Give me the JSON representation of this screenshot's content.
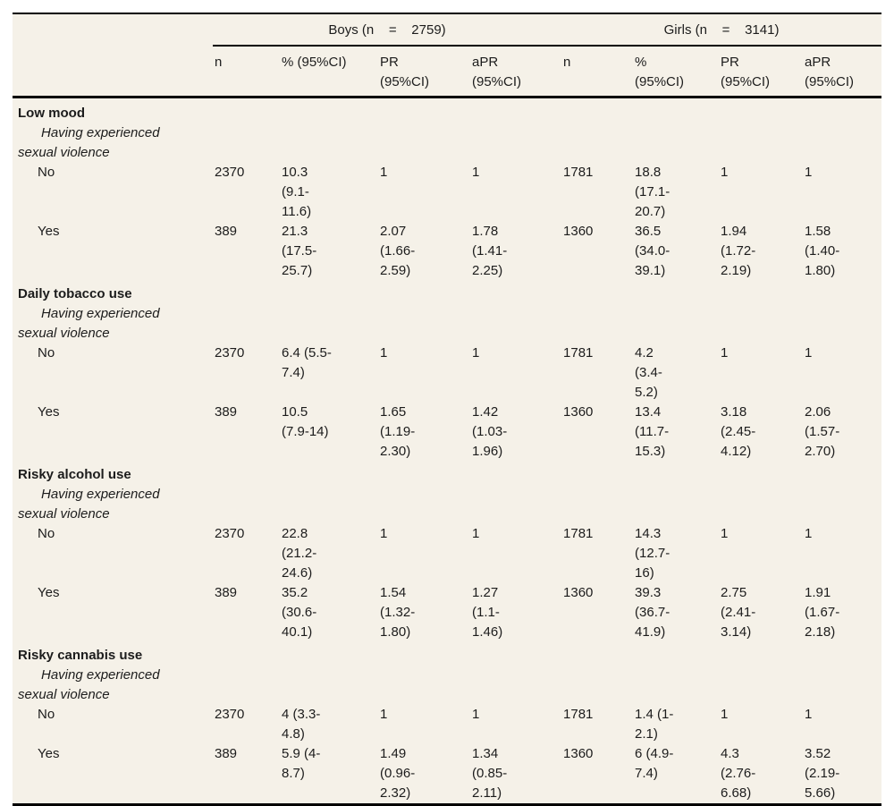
{
  "colors": {
    "page_background": "#ffffff",
    "table_background": "#f5f1e8",
    "rule": "#000000",
    "text": "#1c1c1c"
  },
  "table": {
    "groups": [
      {
        "label": "Boys (n    =    2759)"
      },
      {
        "label": "Girls (n    =    3141)"
      }
    ],
    "columns": [
      "n",
      "% (95%CI)",
      "PR\n(95%CI)",
      "aPR\n(95%CI)",
      "n",
      "%\n(95%CI)",
      "PR\n(95%CI)",
      "aPR\n(95%CI)"
    ],
    "sections": [
      {
        "title": "Low mood",
        "subtitle": "Having experienced\nsexual violence",
        "rows": [
          {
            "label": "No",
            "cells": [
              "2370",
              "10.3\n(9.1-\n11.6)",
              "1",
              "1",
              "1781",
              "18.8\n(17.1-\n20.7)",
              "1",
              "1"
            ]
          },
          {
            "label": "Yes",
            "cells": [
              "389",
              "21.3\n(17.5-\n25.7)",
              "2.07\n(1.66-\n2.59)",
              "1.78\n(1.41-\n2.25)",
              "1360",
              "36.5\n(34.0-\n39.1)",
              "1.94\n(1.72-\n2.19)",
              "1.58\n(1.40-\n1.80)"
            ]
          }
        ]
      },
      {
        "title": "Daily tobacco use",
        "subtitle": "Having experienced\nsexual violence",
        "rows": [
          {
            "label": "No",
            "cells": [
              "2370",
              "6.4 (5.5-\n7.4)",
              "1",
              "1",
              "1781",
              "4.2\n(3.4-\n5.2)",
              "1",
              "1"
            ]
          },
          {
            "label": "Yes",
            "cells": [
              "389",
              "10.5\n(7.9-14)",
              "1.65\n(1.19-\n2.30)",
              "1.42\n(1.03-\n1.96)",
              "1360",
              "13.4\n(11.7-\n15.3)",
              "3.18\n(2.45-\n4.12)",
              "2.06\n(1.57-\n2.70)"
            ]
          }
        ]
      },
      {
        "title": "Risky alcohol use",
        "subtitle": "Having experienced\nsexual violence",
        "rows": [
          {
            "label": "No",
            "cells": [
              "2370",
              "22.8\n(21.2-\n24.6)",
              "1",
              "1",
              "1781",
              "14.3\n(12.7-\n16)",
              "1",
              "1"
            ]
          },
          {
            "label": "Yes",
            "cells": [
              "389",
              "35.2\n(30.6-\n40.1)",
              "1.54\n(1.32-\n1.80)",
              "1.27\n(1.1-\n1.46)",
              "1360",
              "39.3\n(36.7-\n41.9)",
              "2.75\n(2.41-\n3.14)",
              "1.91\n(1.67-\n2.18)"
            ]
          }
        ]
      },
      {
        "title": "Risky cannabis use",
        "subtitle": "Having experienced\nsexual violence",
        "rows": [
          {
            "label": "No",
            "cells": [
              "2370",
              "4 (3.3-\n4.8)",
              "1",
              "1",
              "1781",
              "1.4 (1-\n2.1)",
              "1",
              "1"
            ]
          },
          {
            "label": "Yes",
            "cells": [
              "389",
              "5.9 (4-\n8.7)",
              "1.49\n(0.96-\n2.32)",
              "1.34\n(0.85-\n2.11)",
              "1360",
              "6 (4.9-\n7.4)",
              "4.3\n(2.76-\n6.68)",
              "3.52\n(2.19-\n5.66)"
            ]
          }
        ]
      }
    ]
  }
}
